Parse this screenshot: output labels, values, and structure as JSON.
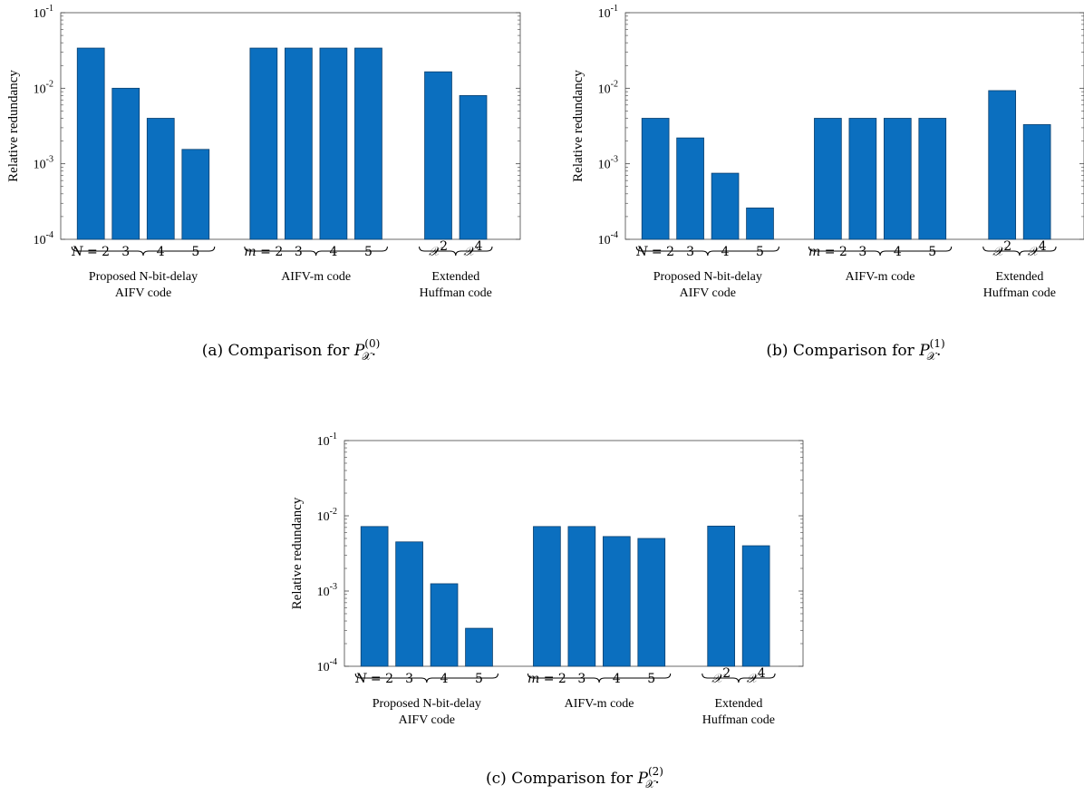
{
  "colors": {
    "bar": "#0b6fbf",
    "bar_edge": "#0a3f6e",
    "axis": "#444444"
  },
  "chart_data": [
    {
      "type": "bar",
      "yscale": "log",
      "ylim": [
        0.0001,
        0.1
      ],
      "ylabel": "Relative redundancy",
      "ytick_labels": [
        "10",
        "10",
        "10",
        "10"
      ],
      "ytick_exponents": [
        "-4",
        "-3",
        "-2",
        "-1"
      ],
      "groups": [
        {
          "label_line1": "Proposed N-bit-delay",
          "label_line2": "AIFV code",
          "categories": [
            {
              "var": "N",
              "rest": " = 2"
            },
            {
              "var": "",
              "rest": "3"
            },
            {
              "var": "",
              "rest": "4"
            },
            {
              "var": "",
              "rest": "5"
            }
          ],
          "values": [
            0.034,
            0.01,
            0.004,
            0.00155
          ]
        },
        {
          "label_line1": "AIFV-m code",
          "label_line2": "",
          "categories": [
            {
              "var": "m",
              "rest": " = 2"
            },
            {
              "var": "",
              "rest": "3"
            },
            {
              "var": "",
              "rest": "4"
            },
            {
              "var": "",
              "rest": "5"
            }
          ],
          "values": [
            0.034,
            0.034,
            0.034,
            0.034
          ]
        },
        {
          "label_line1": "Extended",
          "label_line2": "Huffman code",
          "categories": [
            {
              "var": "𝒳",
              "sup": "2"
            },
            {
              "var": "𝒳",
              "sup": "4"
            }
          ],
          "values": [
            0.0165,
            0.008
          ]
        }
      ],
      "caption": {
        "prefix": "(a) Comparison for ",
        "symbol": "P",
        "sup": "(0)",
        "sub": "𝒳",
        "suffix": "."
      }
    },
    {
      "type": "bar",
      "yscale": "log",
      "ylim": [
        0.0001,
        0.1
      ],
      "ylabel": "Relative redundancy",
      "ytick_labels": [
        "10",
        "10",
        "10",
        "10"
      ],
      "ytick_exponents": [
        "-4",
        "-3",
        "-2",
        "-1"
      ],
      "groups": [
        {
          "label_line1": "Proposed N-bit-delay",
          "label_line2": "AIFV code",
          "categories": [
            {
              "var": "N",
              "rest": " = 2"
            },
            {
              "var": "",
              "rest": "3"
            },
            {
              "var": "",
              "rest": "4"
            },
            {
              "var": "",
              "rest": "5"
            }
          ],
          "values": [
            0.004,
            0.0022,
            0.00075,
            0.00026
          ]
        },
        {
          "label_line1": "AIFV-m code",
          "label_line2": "",
          "categories": [
            {
              "var": "m",
              "rest": " = 2"
            },
            {
              "var": "",
              "rest": "3"
            },
            {
              "var": "",
              "rest": "4"
            },
            {
              "var": "",
              "rest": "5"
            }
          ],
          "values": [
            0.004,
            0.004,
            0.004,
            0.004
          ]
        },
        {
          "label_line1": "Extended",
          "label_line2": "Huffman code",
          "categories": [
            {
              "var": "𝒳",
              "sup": "2"
            },
            {
              "var": "𝒳",
              "sup": "4"
            }
          ],
          "values": [
            0.0093,
            0.0033
          ]
        }
      ],
      "caption": {
        "prefix": "(b) Comparison for ",
        "symbol": "P",
        "sup": "(1)",
        "sub": "𝒳",
        "suffix": "."
      }
    },
    {
      "type": "bar",
      "yscale": "log",
      "ylim": [
        0.0001,
        0.1
      ],
      "ylabel": "Relative redundancy",
      "ytick_labels": [
        "10",
        "10",
        "10",
        "10"
      ],
      "ytick_exponents": [
        "-4",
        "-3",
        "-2",
        "-1"
      ],
      "groups": [
        {
          "label_line1": "Proposed N-bit-delay",
          "label_line2": "AIFV code",
          "categories": [
            {
              "var": "N",
              "rest": " = 2"
            },
            {
              "var": "",
              "rest": "3"
            },
            {
              "var": "",
              "rest": "4"
            },
            {
              "var": "",
              "rest": "5"
            }
          ],
          "values": [
            0.0072,
            0.0045,
            0.00125,
            0.00032
          ]
        },
        {
          "label_line1": "AIFV-m code",
          "label_line2": "",
          "categories": [
            {
              "var": "m",
              "rest": " = 2"
            },
            {
              "var": "",
              "rest": "3"
            },
            {
              "var": "",
              "rest": "4"
            },
            {
              "var": "",
              "rest": "5"
            }
          ],
          "values": [
            0.0072,
            0.0072,
            0.0053,
            0.005
          ]
        },
        {
          "label_line1": "Extended",
          "label_line2": "Huffman code",
          "categories": [
            {
              "var": "𝒳",
              "sup": "2"
            },
            {
              "var": "𝒳",
              "sup": "4"
            }
          ],
          "values": [
            0.0073,
            0.004
          ]
        }
      ],
      "caption": {
        "prefix": "(c) Comparison for ",
        "symbol": "P",
        "sup": "(2)",
        "sub": "𝒳",
        "suffix": "."
      }
    }
  ]
}
